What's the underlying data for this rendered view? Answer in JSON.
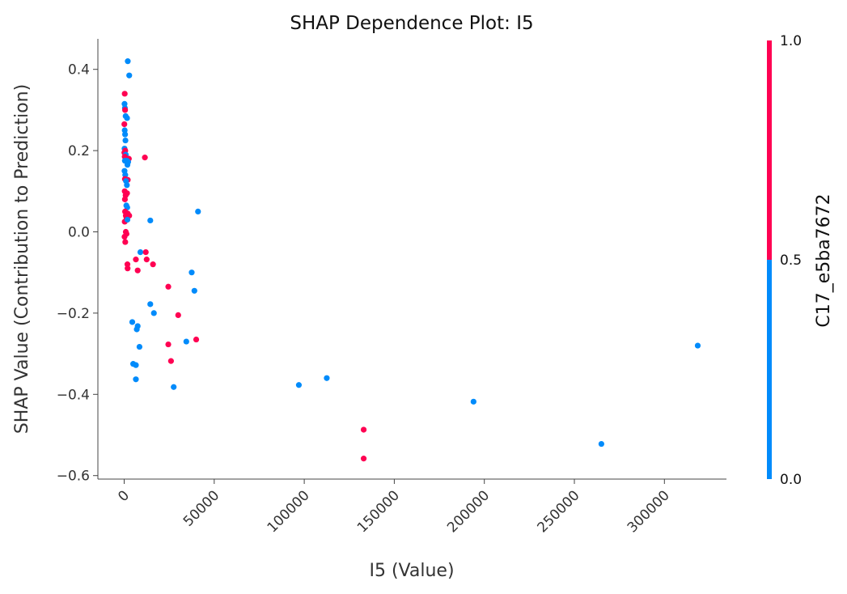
{
  "chart_data": {
    "type": "scatter",
    "title": "SHAP Dependence Plot: I5",
    "xlabel": "I5 (Value)",
    "ylabel": "SHAP Value (Contribution to Prediction)",
    "xlim": [
      -15000,
      335000
    ],
    "ylim": [
      -0.61,
      0.475
    ],
    "xticks": [
      0,
      50000,
      100000,
      150000,
      200000,
      250000,
      300000
    ],
    "yticks": [
      -0.6,
      -0.4,
      -0.2,
      0.0,
      0.2,
      0.4
    ],
    "ytick_labels": [
      "−0.6",
      "−0.4",
      "−0.2",
      "0.0",
      "0.2",
      "0.4"
    ],
    "grid": false,
    "colorbar": {
      "label": "C17_e5ba7672",
      "ticks": [
        0.0,
        0.5,
        1.0
      ],
      "tick_labels": [
        "0.0",
        "0.5",
        "1.0"
      ],
      "low_color": "#008bfb",
      "high_color": "#ff0052"
    },
    "points": [
      {
        "x": 2000,
        "y": 0.42,
        "c": 0
      },
      {
        "x": 2800,
        "y": 0.385,
        "c": 0
      },
      {
        "x": 300,
        "y": 0.34,
        "c": 1
      },
      {
        "x": 200,
        "y": 0.315,
        "c": 0
      },
      {
        "x": 400,
        "y": 0.305,
        "c": 0
      },
      {
        "x": 500,
        "y": 0.3,
        "c": 1
      },
      {
        "x": 800,
        "y": 0.285,
        "c": 0
      },
      {
        "x": 1600,
        "y": 0.28,
        "c": 0
      },
      {
        "x": 100,
        "y": 0.265,
        "c": 1
      },
      {
        "x": 300,
        "y": 0.25,
        "c": 0
      },
      {
        "x": 500,
        "y": 0.24,
        "c": 0
      },
      {
        "x": 700,
        "y": 0.225,
        "c": 0
      },
      {
        "x": 200,
        "y": 0.205,
        "c": 0
      },
      {
        "x": 600,
        "y": 0.2,
        "c": 1
      },
      {
        "x": 100,
        "y": 0.195,
        "c": 1
      },
      {
        "x": 900,
        "y": 0.19,
        "c": 0
      },
      {
        "x": 300,
        "y": 0.185,
        "c": 1
      },
      {
        "x": 1200,
        "y": 0.18,
        "c": 1
      },
      {
        "x": 2600,
        "y": 0.18,
        "c": 1
      },
      {
        "x": 1500,
        "y": 0.175,
        "c": 0
      },
      {
        "x": 400,
        "y": 0.175,
        "c": 0
      },
      {
        "x": 2200,
        "y": 0.172,
        "c": 0
      },
      {
        "x": 1800,
        "y": 0.165,
        "c": 0
      },
      {
        "x": 11500,
        "y": 0.183,
        "c": 1
      },
      {
        "x": 200,
        "y": 0.15,
        "c": 0
      },
      {
        "x": 600,
        "y": 0.14,
        "c": 0
      },
      {
        "x": 400,
        "y": 0.13,
        "c": 1
      },
      {
        "x": 2000,
        "y": 0.128,
        "c": 1
      },
      {
        "x": 1000,
        "y": 0.125,
        "c": 0
      },
      {
        "x": 1500,
        "y": 0.115,
        "c": 0
      },
      {
        "x": 300,
        "y": 0.1,
        "c": 1
      },
      {
        "x": 1600,
        "y": 0.095,
        "c": 1
      },
      {
        "x": 800,
        "y": 0.09,
        "c": 1
      },
      {
        "x": 400,
        "y": 0.08,
        "c": 1
      },
      {
        "x": 1200,
        "y": 0.065,
        "c": 0
      },
      {
        "x": 1700,
        "y": 0.06,
        "c": 0
      },
      {
        "x": 500,
        "y": 0.05,
        "c": 1
      },
      {
        "x": 2000,
        "y": 0.045,
        "c": 1
      },
      {
        "x": 900,
        "y": 0.04,
        "c": 1
      },
      {
        "x": 2800,
        "y": 0.04,
        "c": 1
      },
      {
        "x": 1300,
        "y": 0.035,
        "c": 1
      },
      {
        "x": 300,
        "y": 0.025,
        "c": 1
      },
      {
        "x": 1800,
        "y": 0.03,
        "c": 0
      },
      {
        "x": 14500,
        "y": 0.028,
        "c": 0
      },
      {
        "x": 41000,
        "y": 0.05,
        "c": 0
      },
      {
        "x": 900,
        "y": 0.0,
        "c": 1
      },
      {
        "x": 1300,
        "y": -0.005,
        "c": 1
      },
      {
        "x": 200,
        "y": -0.012,
        "c": 1
      },
      {
        "x": 600,
        "y": -0.025,
        "c": 1
      },
      {
        "x": 9000,
        "y": -0.05,
        "c": 0
      },
      {
        "x": 12000,
        "y": -0.05,
        "c": 1
      },
      {
        "x": 6500,
        "y": -0.068,
        "c": 1
      },
      {
        "x": 12500,
        "y": -0.068,
        "c": 1
      },
      {
        "x": 1800,
        "y": -0.08,
        "c": 1
      },
      {
        "x": 16000,
        "y": -0.08,
        "c": 1
      },
      {
        "x": 1900,
        "y": -0.09,
        "c": 1
      },
      {
        "x": 7500,
        "y": -0.095,
        "c": 1
      },
      {
        "x": 37500,
        "y": -0.1,
        "c": 0
      },
      {
        "x": 24500,
        "y": -0.135,
        "c": 1
      },
      {
        "x": 39000,
        "y": -0.145,
        "c": 0
      },
      {
        "x": 14500,
        "y": -0.178,
        "c": 0
      },
      {
        "x": 16500,
        "y": -0.2,
        "c": 0
      },
      {
        "x": 30000,
        "y": -0.205,
        "c": 1
      },
      {
        "x": 4500,
        "y": -0.222,
        "c": 0
      },
      {
        "x": 7500,
        "y": -0.232,
        "c": 0
      },
      {
        "x": 7000,
        "y": -0.24,
        "c": 0
      },
      {
        "x": 40000,
        "y": -0.265,
        "c": 1
      },
      {
        "x": 34500,
        "y": -0.27,
        "c": 0
      },
      {
        "x": 24500,
        "y": -0.277,
        "c": 1
      },
      {
        "x": 8500,
        "y": -0.283,
        "c": 0
      },
      {
        "x": 318500,
        "y": -0.28,
        "c": 0
      },
      {
        "x": 26000,
        "y": -0.318,
        "c": 1
      },
      {
        "x": 5000,
        "y": -0.325,
        "c": 0
      },
      {
        "x": 6500,
        "y": -0.328,
        "c": 0
      },
      {
        "x": 112500,
        "y": -0.36,
        "c": 0
      },
      {
        "x": 6500,
        "y": -0.363,
        "c": 0
      },
      {
        "x": 97000,
        "y": -0.377,
        "c": 0
      },
      {
        "x": 27500,
        "y": -0.382,
        "c": 0
      },
      {
        "x": 194000,
        "y": -0.418,
        "c": 0
      },
      {
        "x": 133000,
        "y": -0.487,
        "c": 1
      },
      {
        "x": 265000,
        "y": -0.522,
        "c": 0
      },
      {
        "x": 133000,
        "y": -0.558,
        "c": 1
      }
    ]
  }
}
